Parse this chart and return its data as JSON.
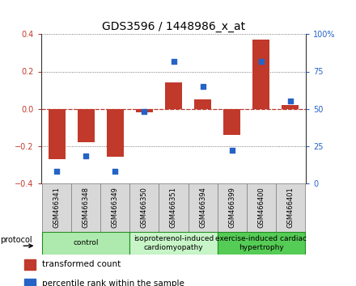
{
  "title": "GDS3596 / 1448986_x_at",
  "samples": [
    "GSM466341",
    "GSM466348",
    "GSM466349",
    "GSM466350",
    "GSM466351",
    "GSM466394",
    "GSM466399",
    "GSM466400",
    "GSM466401"
  ],
  "transformed_count": [
    -0.27,
    -0.18,
    -0.26,
    -0.02,
    0.14,
    0.05,
    -0.14,
    0.37,
    0.02
  ],
  "percentile_rank": [
    8,
    18,
    8,
    48,
    82,
    65,
    22,
    82,
    55
  ],
  "bar_color": "#c0392b",
  "dot_color": "#2563c7",
  "dashed_line_color": "#c0392b",
  "ylim_left": [
    -0.4,
    0.4
  ],
  "ylim_right": [
    0,
    100
  ],
  "yticks_left": [
    -0.4,
    -0.2,
    0.0,
    0.2,
    0.4
  ],
  "yticks_right": [
    0,
    25,
    50,
    75,
    100
  ],
  "ytick_labels_right": [
    "0",
    "25",
    "50",
    "75",
    "100%"
  ],
  "groups": [
    {
      "label": "control",
      "start": 0,
      "end": 2,
      "color": "#aeeaae"
    },
    {
      "label": "isoproterenol-induced\ncardiomyopathy",
      "start": 3,
      "end": 5,
      "color": "#c8f5c8"
    },
    {
      "label": "exercise-induced cardiac\nhypertrophy",
      "start": 6,
      "end": 8,
      "color": "#55cc55"
    }
  ],
  "protocol_label": "protocol",
  "legend_items": [
    {
      "label": "transformed count",
      "color": "#c0392b"
    },
    {
      "label": "percentile rank within the sample",
      "color": "#2563c7"
    }
  ],
  "grid_color": "#555555",
  "background_color": "#ffffff",
  "title_fontsize": 10,
  "tick_fontsize": 7,
  "sample_fontsize": 6,
  "group_fontsize": 6.5,
  "legend_fontsize": 7.5,
  "bar_width": 0.6
}
